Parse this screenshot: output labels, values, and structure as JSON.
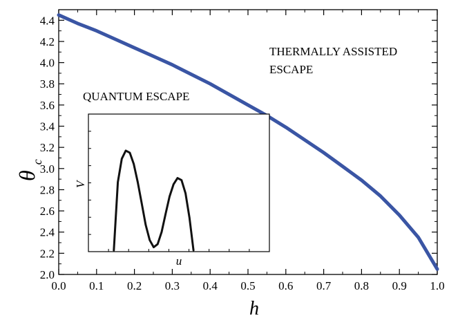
{
  "chart_data": [
    {
      "type": "line",
      "xlabel": "h",
      "ylabel": "θ",
      "ylabel_subscript": "c",
      "xlim": [
        0.0,
        1.0
      ],
      "ylim": [
        2.0,
        4.5
      ],
      "xticks": [
        "0.0",
        "0.1",
        "0.2",
        "0.3",
        "0.4",
        "0.5",
        "0.6",
        "0.7",
        "0.8",
        "0.9",
        "1.0"
      ],
      "yticks": [
        "2.0",
        "2.2",
        "2.4",
        "2.6",
        "2.8",
        "3.0",
        "3.2",
        "3.4",
        "3.6",
        "3.8",
        "4.0",
        "4.2",
        "4.4"
      ],
      "color": "#3a55a4",
      "annotations": [
        "THERMALLY ASSISTED",
        "ESCAPE",
        "QUANTUM ESCAPE"
      ],
      "series": [
        {
          "x": [
            0.0,
            0.05,
            0.1,
            0.15,
            0.2,
            0.25,
            0.3,
            0.35,
            0.4,
            0.45,
            0.5,
            0.55,
            0.6,
            0.65,
            0.7,
            0.75,
            0.8,
            0.85,
            0.9,
            0.95,
            1.0
          ],
          "values": [
            4.45,
            4.37,
            4.3,
            4.22,
            4.14,
            4.06,
            3.98,
            3.89,
            3.8,
            3.7,
            3.6,
            3.5,
            3.39,
            3.27,
            3.15,
            3.02,
            2.89,
            2.74,
            2.56,
            2.35,
            2.05
          ]
        }
      ]
    },
    {
      "type": "line",
      "inset": true,
      "xlabel": "u",
      "ylabel": "V",
      "color": "#111111",
      "series": [
        {
          "x": [
            0.1,
            0.12,
            0.14,
            0.16,
            0.18,
            0.2,
            0.22,
            0.24,
            0.26,
            0.28,
            0.3,
            0.32,
            0.34,
            0.36,
            0.38,
            0.4,
            0.42,
            0.44,
            0.46,
            0.48,
            0.5
          ],
          "values": [
            0.0,
            0.67,
            0.9,
            0.98,
            0.96,
            0.85,
            0.67,
            0.46,
            0.25,
            0.1,
            0.03,
            0.06,
            0.18,
            0.36,
            0.53,
            0.65,
            0.71,
            0.69,
            0.56,
            0.32,
            0.0
          ]
        }
      ]
    }
  ]
}
